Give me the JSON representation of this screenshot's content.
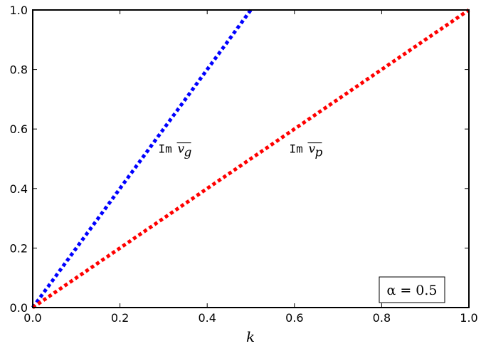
{
  "chart_data": {
    "type": "line",
    "xlabel": "k",
    "ylabel": "",
    "xlim": [
      0.0,
      1.0
    ],
    "ylim": [
      0.0,
      1.0
    ],
    "xticks": [
      "0.0",
      "0.2",
      "0.4",
      "0.6",
      "0.8",
      "1.0"
    ],
    "yticks": [
      "0.0",
      "0.2",
      "0.4",
      "0.6",
      "0.8",
      "1.0"
    ],
    "grid": false,
    "series": [
      {
        "name": "Im v_g",
        "label_prefix": "Im",
        "label_symbol": "v",
        "label_subscript": "g",
        "color": "#0000ff",
        "style": "dotted",
        "x": [
          0.0,
          0.5
        ],
        "y": [
          0.0,
          1.0
        ],
        "label_at": [
          0.35,
          0.52
        ]
      },
      {
        "name": "Im v_p",
        "label_prefix": "Im",
        "label_symbol": "v",
        "label_subscript": "p",
        "color": "#ff0000",
        "style": "dotted",
        "x": [
          0.0,
          1.0
        ],
        "y": [
          0.0,
          1.0
        ],
        "label_at": [
          0.65,
          0.52
        ]
      }
    ],
    "annotation": {
      "text": "α = 0.5",
      "placement": "bottom-right"
    }
  }
}
